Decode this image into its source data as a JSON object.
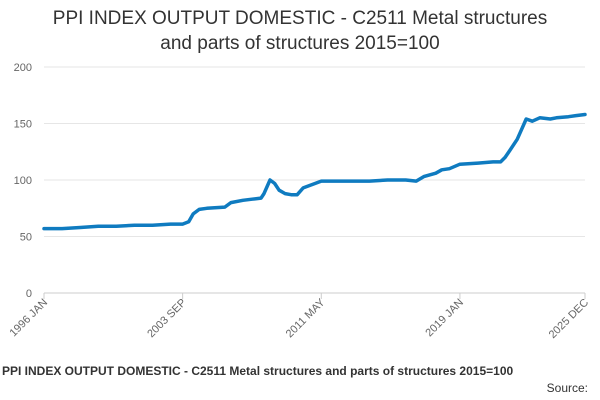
{
  "chart_data": {
    "type": "line",
    "title_lines": [
      "PPI INDEX OUTPUT DOMESTIC - C2511 Metal structures",
      "and parts of structures 2015=100"
    ],
    "xlabel": "",
    "ylabel": "",
    "ylim": [
      0,
      200
    ],
    "y_ticks": [
      0,
      50,
      100,
      150,
      200
    ],
    "x_range": [
      "1996 JAN",
      "2025 DEC"
    ],
    "x_tick_labels": [
      "1996 JAN",
      "2003 SEP",
      "2011 MAY",
      "2019 JAN",
      "2025 DEC"
    ],
    "grid": true,
    "legend": "none",
    "line_color": "#0f7bc0",
    "series": [
      {
        "x": [
          "1996 JAN",
          "1997 JAN",
          "1998 JAN",
          "1999 JAN",
          "2000 JAN",
          "2001 JAN",
          "2002 JAN",
          "2003 JAN",
          "2003 SEP",
          "2004 JAN",
          "2004 APR",
          "2004 AUG",
          "2005 JAN",
          "2006 JAN",
          "2006 MAY",
          "2007 JAN",
          "2007 JUL",
          "2008 JAN",
          "2008 MAR",
          "2008 JUL",
          "2008 OCT",
          "2009 JAN",
          "2009 MAY",
          "2009 SEP",
          "2010 JAN",
          "2010 MAY",
          "2011 JAN",
          "2011 MAY",
          "2012 JAN",
          "2013 JAN",
          "2014 JAN",
          "2015 JAN",
          "2016 JAN",
          "2016 AUG",
          "2017 JAN",
          "2017 SEP",
          "2018 JAN",
          "2018 JUN",
          "2019 JAN",
          "2020 JAN",
          "2020 NOV",
          "2021 APR",
          "2021 JUL",
          "2021 OCT",
          "2022 MAR",
          "2022 JUN",
          "2022 SEP",
          "2023 JAN",
          "2023 JUN",
          "2024 JAN",
          "2024 MAY",
          "2025 JAN",
          "2025 JUN",
          "2025 DEC"
        ],
        "values": [
          57,
          57,
          58,
          59,
          59,
          60,
          60,
          61,
          61,
          63,
          70,
          74,
          75,
          76,
          80,
          82,
          83,
          84,
          88,
          100,
          97,
          91,
          88,
          87,
          87,
          93,
          97,
          99,
          99,
          99,
          99,
          100,
          100,
          99,
          103,
          106,
          109,
          110,
          114,
          115,
          116,
          116,
          120,
          126,
          136,
          145,
          154,
          152,
          155,
          154,
          155,
          156,
          157,
          158
        ]
      }
    ],
    "caption": "PPI INDEX OUTPUT DOMESTIC - C2511 Metal structures and parts of structures 2015=100",
    "source_label": "Source:"
  }
}
